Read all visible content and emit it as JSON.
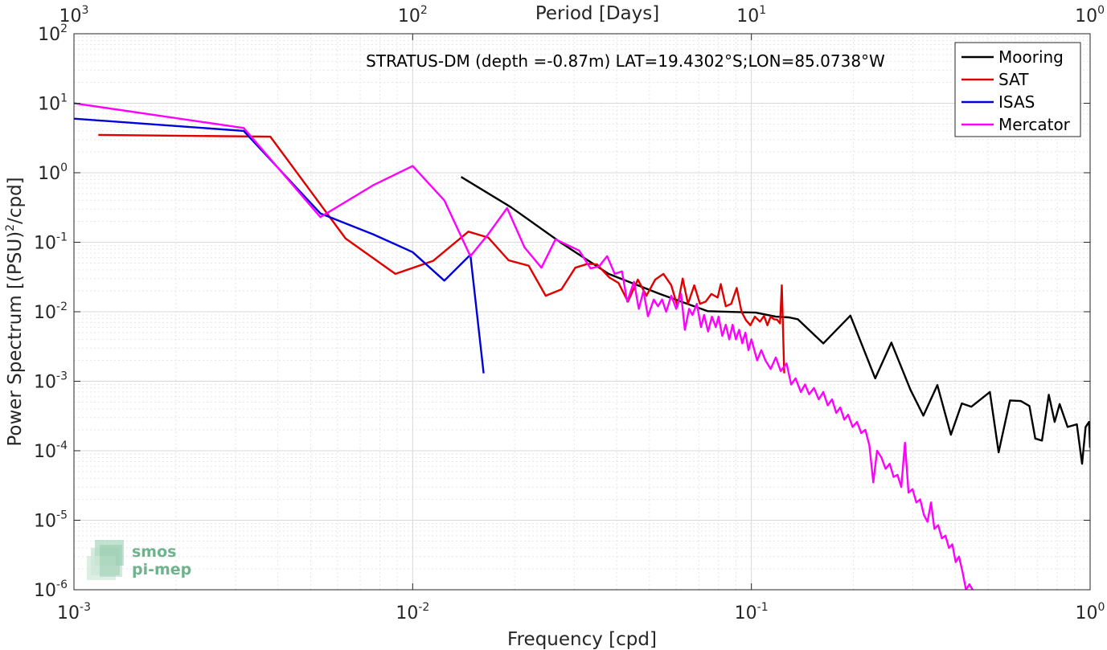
{
  "chart_data": {
    "type": "line",
    "title": "STRATUS-DM (depth =-0.87m) LAT=19.4302°S;LON=85.0738°W",
    "xlabel": "Frequency [cpd]",
    "ylabel": "Power Spectrum [(PSU)²/cpd]",
    "ylabel_base": "Power Spectrum [(PSU)",
    "ylabel_sup": "2",
    "ylabel_tail": "/cpd]",
    "x2label": "Period [Days]",
    "xscale": "log",
    "yscale": "log",
    "xlim": [
      0.001,
      1
    ],
    "ylim": [
      1e-06,
      100
    ],
    "grid": true,
    "legend_position": "top-right",
    "x_ticks": [
      {
        "base": "10",
        "exp": "-3"
      },
      {
        "base": "10",
        "exp": "-2"
      },
      {
        "base": "10",
        "exp": "-1"
      },
      {
        "base": "10",
        "exp": "0"
      }
    ],
    "x2_ticks": [
      {
        "base": "10",
        "exp": "3"
      },
      {
        "base": "10",
        "exp": "2"
      },
      {
        "base": "10",
        "exp": "1"
      },
      {
        "base": "10",
        "exp": "0"
      }
    ],
    "y_ticks": [
      {
        "base": "10",
        "exp": "2"
      },
      {
        "base": "10",
        "exp": "1"
      },
      {
        "base": "10",
        "exp": "0"
      },
      {
        "base": "10",
        "exp": "-1"
      },
      {
        "base": "10",
        "exp": "-2"
      },
      {
        "base": "10",
        "exp": "-3"
      },
      {
        "base": "10",
        "exp": "-4"
      },
      {
        "base": "10",
        "exp": "-5"
      },
      {
        "base": "10",
        "exp": "-6"
      }
    ],
    "series": [
      {
        "name": "Mooring",
        "color": "#000000",
        "points": [
          [
            0.0139,
            0.87
          ],
          [
            0.0195,
            0.32
          ],
          [
            0.0276,
            0.096
          ],
          [
            0.0379,
            0.035
          ],
          [
            0.0537,
            0.018
          ],
          [
            0.0743,
            0.0102
          ],
          [
            0.103,
            0.0097
          ],
          [
            0.118,
            0.0085
          ],
          [
            0.129,
            0.0083
          ],
          [
            0.137,
            0.0078
          ],
          [
            0.163,
            0.0035
          ],
          [
            0.196,
            0.0088
          ],
          [
            0.232,
            0.0011
          ],
          [
            0.259,
            0.0036
          ],
          [
            0.295,
            0.00075
          ],
          [
            0.322,
            0.00032
          ],
          [
            0.354,
            0.00088
          ],
          [
            0.388,
            0.00017
          ],
          [
            0.418,
            0.00048
          ],
          [
            0.446,
            0.00043
          ],
          [
            0.506,
            0.0007
          ],
          [
            0.537,
            9.5e-05
          ],
          [
            0.58,
            0.00053
          ],
          [
            0.624,
            0.00052
          ],
          [
            0.662,
            0.00044
          ],
          [
            0.689,
            0.00015
          ],
          [
            0.721,
            0.00014
          ],
          [
            0.755,
            0.00064
          ],
          [
            0.786,
            0.00026
          ],
          [
            0.813,
            0.00047
          ],
          [
            0.858,
            0.00022
          ],
          [
            0.914,
            0.00024
          ],
          [
            0.947,
            6.5e-05
          ],
          [
            0.97,
            0.00022
          ],
          [
            0.993,
            0.00026
          ],
          [
            1.0,
            0.00011
          ]
        ]
      },
      {
        "name": "SAT",
        "color": "#e00000",
        "points": [
          [
            0.00118,
            3.5
          ],
          [
            0.0038,
            3.3
          ],
          [
            0.00634,
            0.113
          ],
          [
            0.00889,
            0.035
          ],
          [
            0.0115,
            0.054
          ],
          [
            0.0146,
            0.142
          ],
          [
            0.0167,
            0.117
          ],
          [
            0.0192,
            0.055
          ],
          [
            0.022,
            0.046
          ],
          [
            0.0247,
            0.017
          ],
          [
            0.0275,
            0.021
          ],
          [
            0.0302,
            0.043
          ],
          [
            0.0329,
            0.049
          ],
          [
            0.035,
            0.048
          ],
          [
            0.0381,
            0.031
          ],
          [
            0.0405,
            0.026
          ],
          [
            0.0432,
            0.014
          ],
          [
            0.0462,
            0.029
          ],
          [
            0.049,
            0.017
          ],
          [
            0.052,
            0.029
          ],
          [
            0.055,
            0.035
          ],
          [
            0.058,
            0.024
          ],
          [
            0.0605,
            0.012
          ],
          [
            0.0627,
            0.03
          ],
          [
            0.065,
            0.013
          ],
          [
            0.0678,
            0.024
          ],
          [
            0.0705,
            0.013
          ],
          [
            0.0733,
            0.014
          ],
          [
            0.0762,
            0.018
          ],
          [
            0.0795,
            0.016
          ],
          [
            0.0812,
            0.025
          ],
          [
            0.084,
            0.012
          ],
          [
            0.0872,
            0.013
          ],
          [
            0.0905,
            0.022
          ],
          [
            0.0935,
            0.01
          ],
          [
            0.0963,
            0.0076
          ],
          [
            0.0993,
            0.0064
          ],
          [
            0.1024,
            0.0085
          ],
          [
            0.106,
            0.0072
          ],
          [
            0.109,
            0.0087
          ],
          [
            0.1115,
            0.0064
          ],
          [
            0.114,
            0.0085
          ],
          [
            0.1165,
            0.0078
          ],
          [
            0.119,
            0.0077
          ],
          [
            0.1215,
            0.0068
          ],
          [
            0.123,
            0.024
          ],
          [
            0.125,
            0.0013
          ]
        ]
      },
      {
        "name": "ISAS",
        "color": "#0000dd",
        "points": [
          [
            0.001,
            6.0
          ],
          [
            0.00317,
            4.0
          ],
          [
            0.00534,
            0.26
          ],
          [
            0.00764,
            0.13
          ],
          [
            0.01,
            0.072
          ],
          [
            0.0124,
            0.028
          ],
          [
            0.0148,
            0.066
          ],
          [
            0.0162,
            0.0013
          ]
        ]
      },
      {
        "name": "Mercator",
        "color": "#ff00ff",
        "points": [
          [
            0.001,
            10.0
          ],
          [
            0.00317,
            4.4
          ],
          [
            0.00534,
            0.23
          ],
          [
            0.00764,
            0.66
          ],
          [
            0.01,
            1.25
          ],
          [
            0.0124,
            0.4
          ],
          [
            0.0148,
            0.063
          ],
          [
            0.0167,
            0.13
          ],
          [
            0.019,
            0.31
          ],
          [
            0.0214,
            0.084
          ],
          [
            0.024,
            0.043
          ],
          [
            0.0264,
            0.11
          ],
          [
            0.031,
            0.076
          ],
          [
            0.0335,
            0.042
          ],
          [
            0.0355,
            0.045
          ],
          [
            0.0375,
            0.063
          ],
          [
            0.0395,
            0.035
          ],
          [
            0.0415,
            0.038
          ],
          [
            0.043,
            0.014
          ],
          [
            0.045,
            0.027
          ],
          [
            0.0465,
            0.011
          ],
          [
            0.048,
            0.02
          ],
          [
            0.0495,
            0.0086
          ],
          [
            0.0515,
            0.015
          ],
          [
            0.053,
            0.012
          ],
          [
            0.0545,
            0.015
          ],
          [
            0.056,
            0.01
          ],
          [
            0.058,
            0.017
          ],
          [
            0.06,
            0.011
          ],
          [
            0.062,
            0.018
          ],
          [
            0.0636,
            0.0055
          ],
          [
            0.0655,
            0.011
          ],
          [
            0.067,
            0.009
          ],
          [
            0.069,
            0.013
          ],
          [
            0.071,
            0.006
          ],
          [
            0.0725,
            0.009
          ],
          [
            0.0745,
            0.0052
          ],
          [
            0.0765,
            0.0085
          ],
          [
            0.0785,
            0.006
          ],
          [
            0.08,
            0.0085
          ],
          [
            0.082,
            0.0045
          ],
          [
            0.084,
            0.0065
          ],
          [
            0.086,
            0.004
          ],
          [
            0.088,
            0.0065
          ],
          [
            0.09,
            0.004
          ],
          [
            0.092,
            0.0055
          ],
          [
            0.094,
            0.0035
          ],
          [
            0.096,
            0.005
          ],
          [
            0.098,
            0.0028
          ],
          [
            0.1,
            0.004
          ],
          [
            0.104,
            0.002
          ],
          [
            0.107,
            0.0028
          ],
          [
            0.11,
            0.002
          ],
          [
            0.114,
            0.0015
          ],
          [
            0.118,
            0.0022
          ],
          [
            0.122,
            0.0014
          ],
          [
            0.127,
            0.0018
          ],
          [
            0.131,
            0.0009
          ],
          [
            0.135,
            0.0011
          ],
          [
            0.14,
            0.0007
          ],
          [
            0.144,
            0.0009
          ],
          [
            0.148,
            0.00065
          ],
          [
            0.153,
            0.0008
          ],
          [
            0.158,
            0.00055
          ],
          [
            0.163,
            0.0007
          ],
          [
            0.168,
            0.00045
          ],
          [
            0.173,
            0.00055
          ],
          [
            0.178,
            0.00035
          ],
          [
            0.183,
            0.00042
          ],
          [
            0.188,
            0.00028
          ],
          [
            0.193,
            0.00033
          ],
          [
            0.199,
            0.00022
          ],
          [
            0.205,
            0.00026
          ],
          [
            0.211,
            0.00018
          ],
          [
            0.217,
            0.0002
          ],
          [
            0.223,
            0.00012
          ],
          [
            0.229,
            3.5e-05
          ],
          [
            0.235,
            0.0001
          ],
          [
            0.242,
            8e-05
          ],
          [
            0.249,
            5.5e-05
          ],
          [
            0.256,
            6.5e-05
          ],
          [
            0.263,
            4.2e-05
          ],
          [
            0.27,
            4.5e-05
          ],
          [
            0.277,
            3e-05
          ],
          [
            0.284,
            0.00013
          ],
          [
            0.291,
            2.5e-05
          ],
          [
            0.299,
            2.8e-05
          ],
          [
            0.307,
            1.8e-05
          ],
          [
            0.315,
            2e-05
          ],
          [
            0.323,
            1.2e-05
          ],
          [
            0.331,
            9.5e-06
          ],
          [
            0.339,
            1.8e-05
          ],
          [
            0.347,
            7.5e-06
          ],
          [
            0.356,
            8.5e-06
          ],
          [
            0.365,
            5.5e-06
          ],
          [
            0.374,
            6e-06
          ],
          [
            0.383,
            4e-06
          ],
          [
            0.392,
            4.5e-06
          ],
          [
            0.401,
            2.5e-06
          ],
          [
            0.41,
            3e-06
          ],
          [
            0.42,
            1.8e-06
          ],
          [
            0.43,
            1e-06
          ],
          [
            0.44,
            1.2e-06
          ],
          [
            0.45,
            1e-06
          ]
        ]
      }
    ],
    "legend": [
      {
        "label": "Mooring",
        "color": "#000000"
      },
      {
        "label": "SAT",
        "color": "#e00000"
      },
      {
        "label": "ISAS",
        "color": "#0000dd"
      },
      {
        "label": "Mercator",
        "color": "#ff00ff"
      }
    ]
  },
  "logo": {
    "line1": "smos",
    "line2": "pi-mep",
    "color": "#6fb38e"
  }
}
